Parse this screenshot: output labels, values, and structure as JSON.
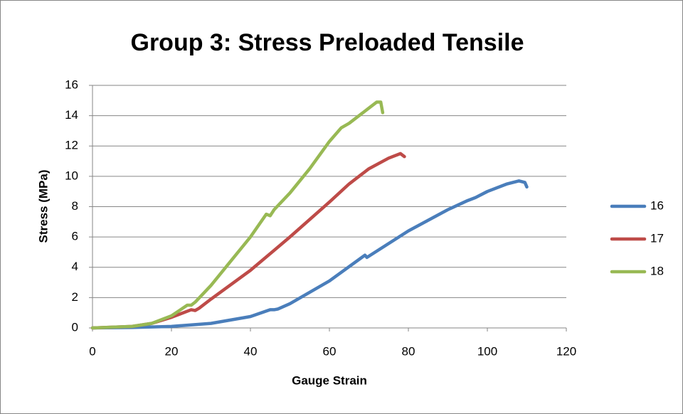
{
  "chart_data": {
    "type": "line",
    "title": "Group 3: Stress Preloaded Tensile",
    "x_label": "Gauge Strain",
    "y_label": "Stress (MPa)",
    "xlim": [
      0,
      120
    ],
    "xticks": [
      0,
      20,
      40,
      60,
      80,
      100,
      120
    ],
    "ylim": [
      0,
      16
    ],
    "yticks": [
      0,
      2,
      4,
      6,
      8,
      10,
      12,
      14,
      16
    ],
    "grid": true,
    "legend": "right",
    "series": [
      {
        "name": "16",
        "color": "#4a7ebb",
        "x": [
          0,
          10,
          20,
          30,
          40,
          45,
          46,
          47,
          50,
          60,
          69,
          69.5,
          80,
          90,
          95,
          97,
          100,
          105,
          108,
          109.5,
          110
        ],
        "values": [
          0,
          0.03,
          0.1,
          0.3,
          0.75,
          1.2,
          1.2,
          1.25,
          1.6,
          3.1,
          4.8,
          4.65,
          6.4,
          7.8,
          8.4,
          8.6,
          9.0,
          9.5,
          9.7,
          9.6,
          9.3
        ]
      },
      {
        "name": "17",
        "color": "#be4b48",
        "x": [
          0,
          10,
          15,
          20,
          25,
          26,
          27,
          30,
          40,
          50,
          60,
          65,
          70,
          75,
          78,
          79
        ],
        "values": [
          0,
          0.1,
          0.3,
          0.7,
          1.2,
          1.15,
          1.3,
          1.9,
          3.8,
          6.0,
          8.3,
          9.5,
          10.5,
          11.2,
          11.5,
          11.3
        ]
      },
      {
        "name": "18",
        "color": "#98b954",
        "x": [
          0,
          10,
          15,
          20,
          24,
          25,
          26,
          30,
          35,
          40,
          44,
          45,
          46,
          50,
          55,
          60,
          63,
          65,
          70,
          72,
          73,
          73.5
        ],
        "values": [
          0,
          0.1,
          0.3,
          0.8,
          1.5,
          1.5,
          1.7,
          2.8,
          4.4,
          6.0,
          7.5,
          7.4,
          7.8,
          8.9,
          10.5,
          12.3,
          13.2,
          13.5,
          14.5,
          14.9,
          14.9,
          14.2
        ]
      }
    ]
  }
}
